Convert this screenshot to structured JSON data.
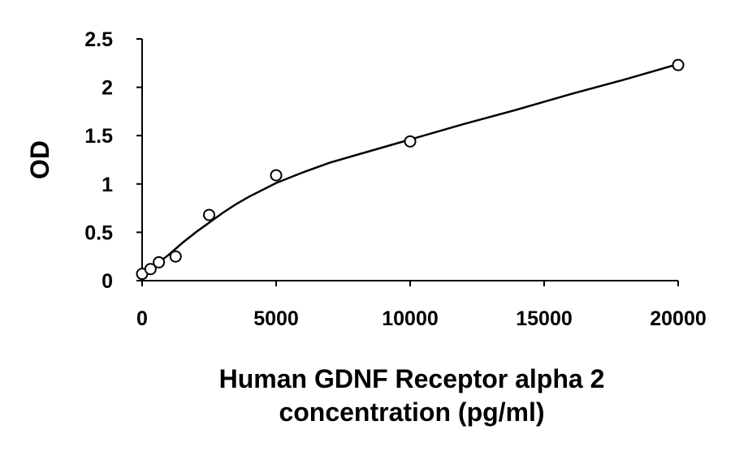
{
  "chart_data": {
    "type": "scatter",
    "title": "",
    "xlabel_lines": [
      "Human GDNF Receptor alpha 2",
      "concentration (pg/ml)"
    ],
    "ylabel": "OD",
    "xlim": [
      0,
      20000
    ],
    "ylim": [
      0,
      2.5
    ],
    "x_ticks": [
      0,
      5000,
      10000,
      15000,
      20000
    ],
    "x_tick_labels": [
      "0",
      "5000",
      "10000",
      "15000",
      "20000"
    ],
    "y_ticks": [
      0,
      0.5,
      1,
      1.5,
      2,
      2.5
    ],
    "y_tick_labels": [
      "0",
      "0.5",
      "1",
      "1.5",
      "2",
      "2.5"
    ],
    "grid": false,
    "legend": "none",
    "series": [
      {
        "points": [
          {
            "x": 0,
            "y": 0.07
          },
          {
            "x": 312.5,
            "y": 0.12
          },
          {
            "x": 625,
            "y": 0.19
          },
          {
            "x": 1250,
            "y": 0.25
          },
          {
            "x": 2500,
            "y": 0.68
          },
          {
            "x": 5000,
            "y": 1.09
          },
          {
            "x": 10000,
            "y": 1.44
          },
          {
            "x": 20000,
            "y": 2.23
          }
        ]
      }
    ],
    "fit_curve": [
      {
        "x": 0,
        "y": 0.07
      },
      {
        "x": 250,
        "y": 0.1
      },
      {
        "x": 500,
        "y": 0.16
      },
      {
        "x": 1000,
        "y": 0.27
      },
      {
        "x": 1500,
        "y": 0.39
      },
      {
        "x": 2000,
        "y": 0.5
      },
      {
        "x": 2500,
        "y": 0.6
      },
      {
        "x": 3000,
        "y": 0.7
      },
      {
        "x": 3500,
        "y": 0.79
      },
      {
        "x": 4000,
        "y": 0.87
      },
      {
        "x": 5000,
        "y": 1.01
      },
      {
        "x": 6000,
        "y": 1.12
      },
      {
        "x": 7000,
        "y": 1.22
      },
      {
        "x": 8000,
        "y": 1.3
      },
      {
        "x": 9000,
        "y": 1.38
      },
      {
        "x": 10000,
        "y": 1.46
      },
      {
        "x": 12000,
        "y": 1.62
      },
      {
        "x": 14000,
        "y": 1.77
      },
      {
        "x": 16000,
        "y": 1.93
      },
      {
        "x": 18000,
        "y": 2.08
      },
      {
        "x": 20000,
        "y": 2.24
      }
    ]
  }
}
